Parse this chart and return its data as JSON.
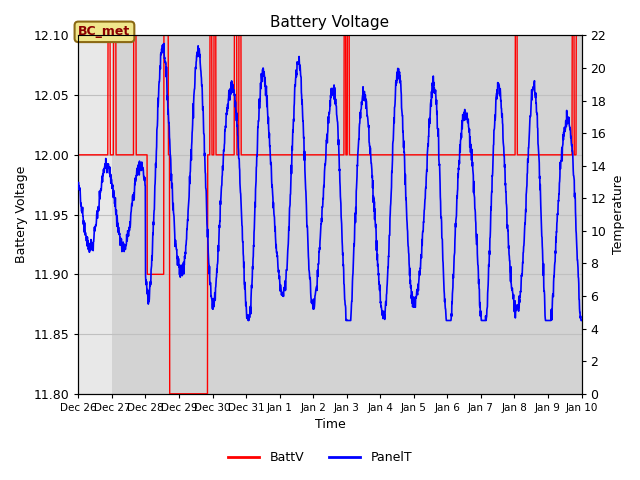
{
  "title": "Battery Voltage",
  "xlabel": "Time",
  "ylabel_left": "Battery Voltage",
  "ylabel_right": "Temperature",
  "ylim_left": [
    11.8,
    12.1
  ],
  "ylim_right": [
    0,
    22
  ],
  "yticks_left": [
    11.8,
    11.85,
    11.9,
    11.95,
    12.0,
    12.05,
    12.1
  ],
  "yticks_right": [
    0,
    2,
    4,
    6,
    8,
    10,
    12,
    14,
    16,
    18,
    20,
    22
  ],
  "xtick_labels": [
    "Dec 26",
    "Dec 27",
    "Dec 28",
    "Dec 29",
    "Dec 30",
    "Dec 31",
    "Jan 1",
    "Jan 2",
    "Jan 3",
    "Jan 4",
    "Jan 5",
    "Jan 6",
    "Jan 7",
    "Jan 8",
    "Jan 9",
    "Jan 10"
  ],
  "fig_bg": "#ffffff",
  "plot_bg": "#e8e8e8",
  "shaded_color": "#d3d3d3",
  "annotation_text": "BC_met",
  "annotation_facecolor": "#f0e68c",
  "annotation_edgecolor": "#8b6914",
  "batt_color": "#ff0000",
  "panel_color": "#0000ff",
  "legend_batt": "BattV",
  "legend_panel": "PanelT",
  "shaded_xmin": 1.0,
  "shaded_xmax": 15.0,
  "xlim": [
    0,
    15
  ]
}
